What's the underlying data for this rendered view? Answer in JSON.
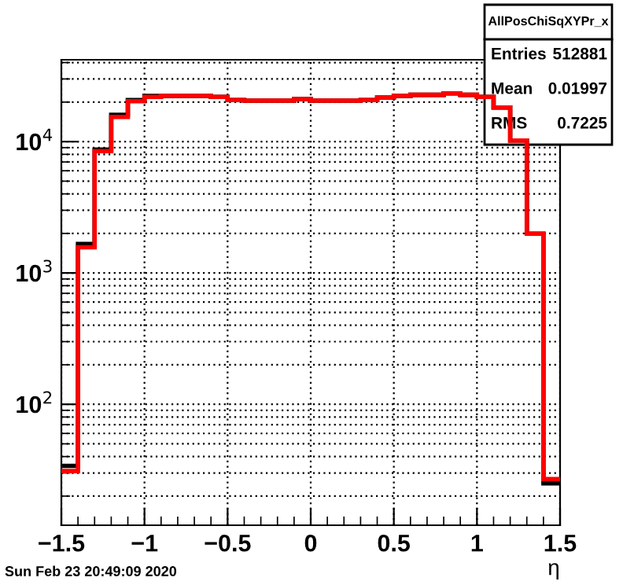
{
  "chart_data": {
    "type": "histogram",
    "xlabel": "η",
    "bins": [
      -1.5,
      -1.4,
      -1.3,
      -1.2,
      -1.1,
      -1.0,
      -0.9,
      -0.8,
      -0.7,
      -0.6,
      -0.5,
      -0.4,
      -0.3,
      -0.2,
      -0.1,
      0.0,
      0.1,
      0.2,
      0.3,
      0.4,
      0.5,
      0.6,
      0.7,
      0.8,
      0.9,
      1.0,
      1.1,
      1.2,
      1.3,
      1.4,
      1.5
    ],
    "series": [
      {
        "color": "#000000",
        "values": [
          34,
          1660,
          8700,
          16000,
          20700,
          22300,
          22300,
          22300,
          22300,
          21900,
          20700,
          20500,
          20500,
          20500,
          21100,
          20500,
          20500,
          20500,
          20700,
          21700,
          22300,
          22700,
          22700,
          23300,
          22700,
          21900,
          18200,
          10200,
          1990,
          25
        ]
      },
      {
        "color": "#ff0000",
        "values": [
          31,
          1570,
          8470,
          15400,
          20300,
          21900,
          22300,
          22300,
          22300,
          21900,
          20700,
          20500,
          20500,
          20500,
          21100,
          20500,
          20500,
          20500,
          20700,
          21700,
          22300,
          22700,
          22700,
          23300,
          22700,
          21900,
          18200,
          10200,
          1990,
          27
        ]
      }
    ],
    "log": "y",
    "grid": true,
    "xlim": [
      -1.5,
      1.5
    ],
    "xticks": [
      {
        "value": -1.5,
        "label": "−1.5"
      },
      {
        "value": -1.4,
        "label": null
      },
      {
        "value": -1.3,
        "label": null
      },
      {
        "value": -1.2,
        "label": null
      },
      {
        "value": -1.1,
        "label": null
      },
      {
        "value": -1,
        "label": "−1"
      },
      {
        "value": -0.9,
        "label": null
      },
      {
        "value": -0.8,
        "label": null
      },
      {
        "value": -0.7,
        "label": null
      },
      {
        "value": -0.6,
        "label": null
      },
      {
        "value": -0.5,
        "label": "−0.5"
      },
      {
        "value": -0.4,
        "label": null
      },
      {
        "value": -0.3,
        "label": null
      },
      {
        "value": -0.2,
        "label": null
      },
      {
        "value": -0.1,
        "label": null
      },
      0,
      {
        "value": 0.1,
        "label": null
      },
      {
        "value": 0.2,
        "label": null
      },
      {
        "value": 0.3,
        "label": null
      },
      {
        "value": 0.4,
        "label": null
      },
      0.5,
      {
        "value": 0.6,
        "label": null
      },
      {
        "value": 0.7,
        "label": null
      },
      {
        "value": 0.8,
        "label": null
      },
      {
        "value": 0.9,
        "label": null
      },
      1,
      {
        "value": 1.1,
        "label": null
      },
      {
        "value": 1.2,
        "label": null
      },
      {
        "value": 1.3,
        "label": null
      },
      {
        "value": 1.4,
        "label": null
      },
      1.5
    ],
    "ylim": [
      12,
      42000
    ],
    "yticks": [
      {
        "value": 20,
        "label": null
      },
      {
        "value": 30,
        "label": null
      },
      {
        "value": 40,
        "label": null
      },
      {
        "value": 50,
        "label": null
      },
      {
        "value": 60,
        "label": null
      },
      {
        "value": 70,
        "label": null
      },
      {
        "value": 80,
        "label": null
      },
      {
        "value": 90,
        "label": null
      },
      {
        "value": 100,
        "label": "10$^{2}$"
      },
      {
        "value": 200,
        "label": null
      },
      {
        "value": 300,
        "label": null
      },
      {
        "value": 400,
        "label": null
      },
      {
        "value": 500,
        "label": null
      },
      {
        "value": 600,
        "label": null
      },
      {
        "value": 700,
        "label": null
      },
      {
        "value": 800,
        "label": null
      },
      {
        "value": 900,
        "label": null
      },
      {
        "value": 1000,
        "label": "10$^{3}$"
      },
      {
        "value": 2000,
        "label": null
      },
      {
        "value": 3000,
        "label": null
      },
      {
        "value": 4000,
        "label": null
      },
      {
        "value": 5000,
        "label": null
      },
      {
        "value": 6000,
        "label": null
      },
      {
        "value": 7000,
        "label": null
      },
      {
        "value": 8000,
        "label": null
      },
      {
        "value": 9000,
        "label": null
      },
      {
        "value": 10000,
        "label": "10$^{4}$"
      },
      {
        "value": 20000,
        "label": null
      },
      {
        "value": 30000,
        "label": null
      },
      {
        "value": 40000,
        "label": null
      }
    ],
    "annotations": [
      "AllPosChiSqXYPr_x",
      "Entries 512881",
      "Mean 0.01997",
      "RMS 0.7225",
      "Sun Feb 23 20:49:09 2020"
    ]
  }
}
